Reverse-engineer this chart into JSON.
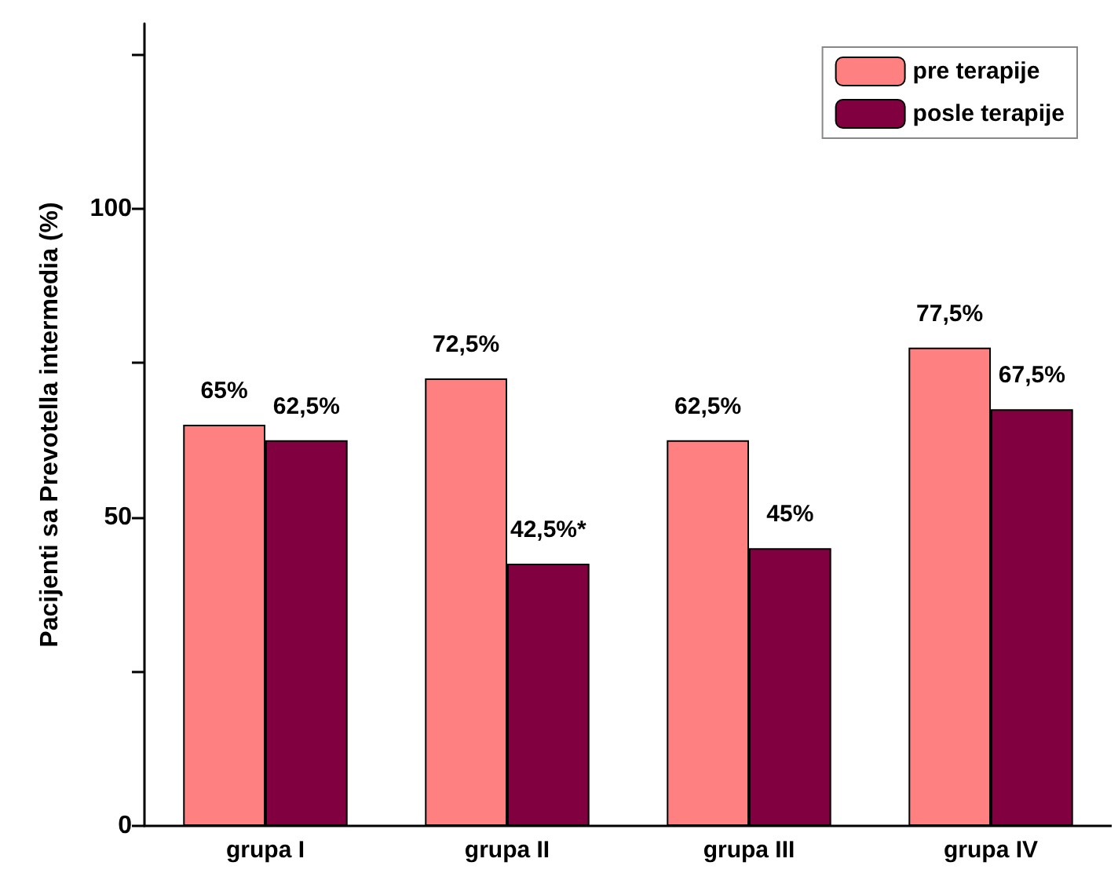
{
  "chart_data": {
    "type": "bar",
    "ylabel": "Pacijenti sa Prevotella intermedia (%)",
    "categories": [
      "grupa I",
      "grupa II",
      "grupa III",
      "grupa IV"
    ],
    "series": [
      {
        "name": "pre terapije",
        "color": "#ff8080",
        "values": [
          65,
          72.5,
          62.5,
          77.5
        ],
        "value_labels": [
          "65%",
          "72,5%",
          "62,5%",
          "77,5%"
        ]
      },
      {
        "name": "posle terapije",
        "color": "#800040",
        "values": [
          62.5,
          42.5,
          45,
          67.5
        ],
        "value_labels": [
          "62,5%",
          "42,5%*",
          "45%",
          "67,5%"
        ]
      }
    ],
    "ylim": [
      0,
      130
    ],
    "yticks": [
      0,
      {
        "value": 25,
        "label": null
      },
      50,
      {
        "value": 75,
        "label": null
      },
      100,
      {
        "value": 125,
        "label": null
      }
    ],
    "grid": false,
    "legend": "top right"
  }
}
